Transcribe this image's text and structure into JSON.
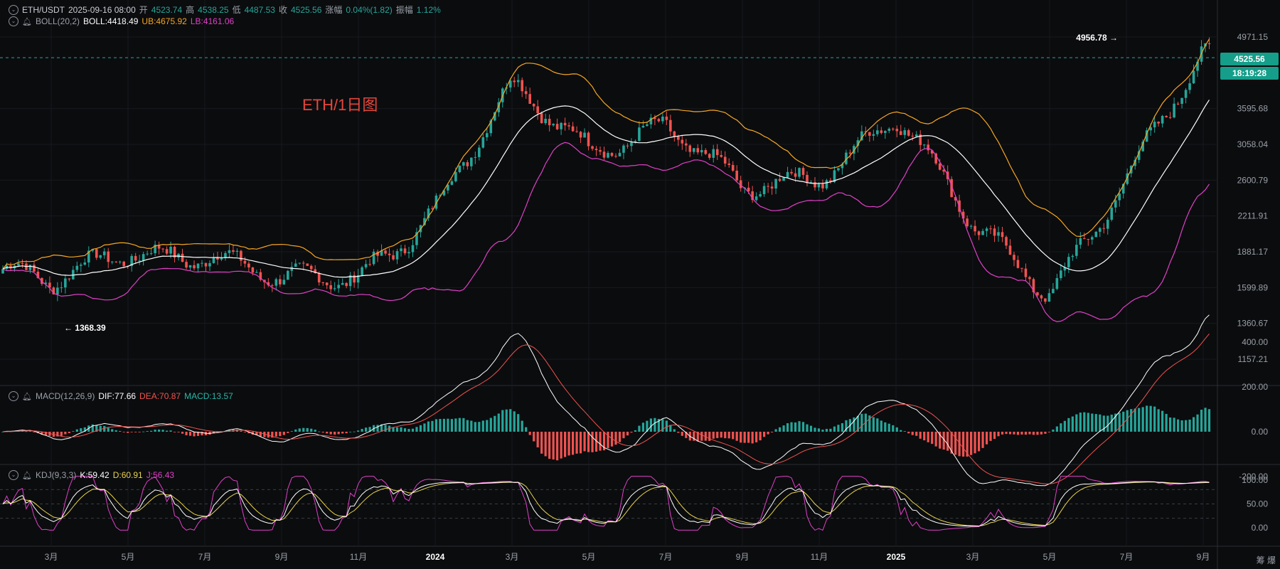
{
  "header": {
    "pair": "ETH/USDT",
    "datetime": "2025-09-16 08:00",
    "open_label": "开",
    "open": "4523.74",
    "high_label": "高",
    "high": "4538.25",
    "low_label": "低",
    "low": "4487.53",
    "close_label": "收",
    "close": "4525.56",
    "change_label": "涨幅",
    "change": "0.04%(1.82)",
    "amp_label": "振幅",
    "amp": "1.12%"
  },
  "boll": {
    "name": "BOLL(20,2)",
    "mid": "BOLL:4418.49",
    "ub": "UB:4675.92",
    "lb": "LB:4161.06"
  },
  "macd": {
    "name": "MACD(12,26,9)",
    "dif": "DIF:77.66",
    "dea": "DEA:70.87",
    "macd": "MACD:13.57"
  },
  "kdj": {
    "name": "KDJ(9,3,3)",
    "k": "K:59.42",
    "d": "D:60.91",
    "j": "J:56.43"
  },
  "watermark": "ETH/1日图",
  "last_price": "4525.56",
  "countdown": "18:19:28",
  "corner_text": "筹 爆",
  "colors": {
    "up": "#26a69a",
    "down": "#ef5350",
    "mid": "#ffffff",
    "ub": "#f5a623",
    "lb": "#e040c8",
    "bg": "#0b0c0e"
  },
  "chart_data": {
    "type": "candlestick",
    "title": "ETH/1日图",
    "price_axis": {
      "ticks": [
        4971.15,
        3595.68,
        3058.04,
        2600.79,
        2211.91,
        1881.17,
        1599.89,
        1360.67,
        1157.21
      ],
      "scale": "log"
    },
    "x_ticks": [
      "3月",
      "5月",
      "7月",
      "9月",
      "11月",
      "2024",
      "3月",
      "5月",
      "7月",
      "9月",
      "11月",
      "2025",
      "3月",
      "5月",
      "7月",
      "9月"
    ],
    "annotations": {
      "high": "4956.78",
      "low": "1368.39"
    },
    "close_path": [
      [
        "3月",
        1600
      ],
      [
        "5月",
        1900
      ],
      [
        "7月",
        1880
      ],
      [
        "9月",
        1620
      ],
      [
        "11月",
        1700
      ],
      [
        "2024",
        2300
      ],
      [
        "3月",
        3900
      ],
      [
        "5月",
        3050
      ],
      [
        "7月",
        3350
      ],
      [
        "9月",
        2450
      ],
      [
        "11月",
        2700
      ],
      [
        "2025",
        3500
      ],
      [
        "3月",
        2100
      ],
      [
        "5月",
        1600
      ],
      [
        "7月",
        2600
      ],
      [
        "9月",
        4500
      ]
    ],
    "macd_axis": {
      "ticks": [
        400.0,
        200.0,
        0.0,
        -200.0
      ]
    },
    "kdj_axis": {
      "ticks": [
        100.0,
        50.0,
        0.0
      ]
    }
  }
}
